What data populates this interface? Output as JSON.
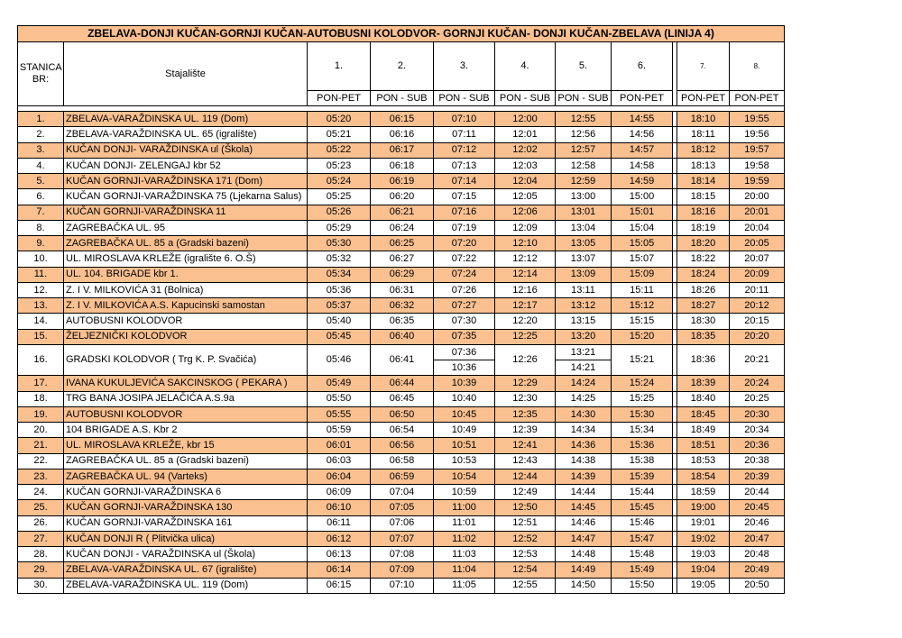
{
  "title": "ZBELAVA-DONJI KUČAN-GORNJI KUČAN-AUTOBUSNI KOLODVOR- GORNJI KUČAN- DONJI KUČAN-ZBELAVA (LINIJA 4)",
  "header": {
    "station_no": "STANICA BR:",
    "stop": "Stajalište",
    "departures": [
      "1.",
      "2.",
      "3.",
      "4.",
      "5.",
      "6.",
      "7.",
      "8."
    ],
    "days": [
      "PON-PET",
      "PON - SUB",
      "PON - SUB",
      "PON - SUB",
      "PON - SUB",
      "PON-PET",
      "PON-PET",
      "PON-PET"
    ]
  },
  "rows": [
    {
      "no": "1.",
      "stop": "ZBELAVA-VARAŽDINSKA UL. 119 (Dom)",
      "times": [
        "05:20",
        "06:15",
        "07:10",
        "12:00",
        "12:55",
        "14:55",
        "18:10",
        "19:55"
      ]
    },
    {
      "no": "2.",
      "stop": "ZBELAVA-VARAŽDINSKA UL. 65 (igralište)",
      "times": [
        "05:21",
        "06:16",
        "07:11",
        "12:01",
        "12:56",
        "14:56",
        "18:11",
        "19:56"
      ]
    },
    {
      "no": "3.",
      "stop": "KUČAN DONJI- VARAŽDINSKA ul (Škola)",
      "times": [
        "05:22",
        "06:17",
        "07:12",
        "12:02",
        "12:57",
        "14:57",
        "18:12",
        "19:57"
      ]
    },
    {
      "no": "4.",
      "stop": "KUČAN DONJI- ZELENGAJ kbr 52",
      "times": [
        "05:23",
        "06:18",
        "07:13",
        "12:03",
        "12:58",
        "14:58",
        "18:13",
        "19:58"
      ]
    },
    {
      "no": "5.",
      "stop": "KUČAN GORNJI-VARAŽDINSKA 171 (Dom)",
      "times": [
        "05:24",
        "06:19",
        "07:14",
        "12:04",
        "12:59",
        "14:59",
        "18:14",
        "19:59"
      ]
    },
    {
      "no": "6.",
      "stop": "KUČAN GORNJI-VARAŽDINSKA 75 (Ljekarna Salus)",
      "times": [
        "05:25",
        "06:20",
        "07:15",
        "12:05",
        "13:00",
        "15:00",
        "18:15",
        "20:00"
      ]
    },
    {
      "no": "7.",
      "stop": "KUČAN GORNJI-VARAŽDINSKA 11",
      "times": [
        "05:26",
        "06:21",
        "07:16",
        "12:06",
        "13:01",
        "15:01",
        "18:16",
        "20:01"
      ]
    },
    {
      "no": "8.",
      "stop": "ZAGREBAČKA UL. 95",
      "times": [
        "05:29",
        "06:24",
        "07:19",
        "12:09",
        "13:04",
        "15:04",
        "18:19",
        "20:04"
      ]
    },
    {
      "no": "9.",
      "stop": "ZAGREBAČKA UL. 85 a (Gradski bazeni)",
      "times": [
        "05:30",
        "06:25",
        "07:20",
        "12:10",
        "13:05",
        "15:05",
        "18:20",
        "20:05"
      ]
    },
    {
      "no": "10.",
      "stop": "UL. MIROSLAVA KRLEŽE (igralište 6. O.Š)",
      "times": [
        "05:32",
        "06:27",
        "07:22",
        "12:12",
        "13:07",
        "15:07",
        "18:22",
        "20:07"
      ]
    },
    {
      "no": "11.",
      "stop": "UL. 104. BRIGADE kbr 1.",
      "times": [
        "05:34",
        "06:29",
        "07:24",
        "12:14",
        "13:09",
        "15:09",
        "18:24",
        "20:09"
      ]
    },
    {
      "no": "12.",
      "stop": "Z. I V. MILKOVIĆA 31 (Bolnica)",
      "times": [
        "05:36",
        "06:31",
        "07:26",
        "12:16",
        "13:11",
        "15:11",
        "18:26",
        "20:11"
      ]
    },
    {
      "no": "13.",
      "stop": "Z. I V. MILKOVIĆA A.S. Kapucinski samostan",
      "times": [
        "05:37",
        "06:32",
        "07:27",
        "12:17",
        "13:12",
        "15:12",
        "18:27",
        "20:12"
      ]
    },
    {
      "no": "14.",
      "stop": "AUTOBUSNI KOLODVOR",
      "times": [
        "05:40",
        "06:35",
        "07:30",
        "12:20",
        "13:15",
        "15:15",
        "18:30",
        "20:15"
      ]
    },
    {
      "no": "15.",
      "stop": "ŽELJEZNIČKI KOLODVOR",
      "times": [
        "05:45",
        "06:40",
        "07:35",
        "12:25",
        "13:20",
        "15:20",
        "18:35",
        "20:20"
      ]
    },
    {
      "no": "16.",
      "stop": "GRADSKI KOLODVOR ( Trg K. P. Svačića)",
      "times": [
        "05:46",
        "06:41",
        [
          "07:36",
          "10:36"
        ],
        "12:26",
        [
          "13:21",
          "14:21"
        ],
        "15:21",
        "18:36",
        "20:21"
      ]
    },
    {
      "no": "17.",
      "stop": "IVANA KUKULJEVIĆA SAKCINSKOG ( PEKARA )",
      "times": [
        "05:49",
        "06:44",
        "10:39",
        "12:29",
        "14:24",
        "15:24",
        "18:39",
        "20:24"
      ]
    },
    {
      "no": "18.",
      "stop": "TRG BANA JOSIPA JELAČIĆA A.S.9a",
      "times": [
        "05:50",
        "06:45",
        "10:40",
        "12:30",
        "14:25",
        "15:25",
        "18:40",
        "20:25"
      ]
    },
    {
      "no": "19.",
      "stop": "AUTOBUSNI KOLODVOR",
      "times": [
        "05:55",
        "06:50",
        "10:45",
        "12:35",
        "14:30",
        "15:30",
        "18:45",
        "20:30"
      ]
    },
    {
      "no": "20.",
      "stop": "104 BRIGADE A.S. Kbr 2",
      "times": [
        "05:59",
        "06:54",
        "10:49",
        "12:39",
        "14:34",
        "15:34",
        "18:49",
        "20:34"
      ]
    },
    {
      "no": "21.",
      "stop": "UL. MIROSLAVA KRLEŽE, kbr 15",
      "times": [
        "06:01",
        "06:56",
        "10:51",
        "12:41",
        "14:36",
        "15:36",
        "18:51",
        "20:36"
      ]
    },
    {
      "no": "22.",
      "stop": "ZAGREBAČKA UL. 85 a (Gradski bazeni)",
      "times": [
        "06:03",
        "06:58",
        "10:53",
        "12:43",
        "14:38",
        "15:38",
        "18:53",
        "20:38"
      ]
    },
    {
      "no": "23.",
      "stop": "ZAGREBAČKA UL. 94 (Varteks)",
      "times": [
        "06:04",
        "06:59",
        "10:54",
        "12:44",
        "14:39",
        "15:39",
        "18:54",
        "20:39"
      ]
    },
    {
      "no": "24.",
      "stop": "KUČAN GORNJI-VARAŽDINSKA 6",
      "times": [
        "06:09",
        "07:04",
        "10:59",
        "12:49",
        "14:44",
        "15:44",
        "18:59",
        "20:44"
      ]
    },
    {
      "no": "25.",
      "stop": "KUČAN GORNJI-VARAŽDINSKA 130",
      "times": [
        "06:10",
        "07:05",
        "11:00",
        "12:50",
        "14:45",
        "15:45",
        "19:00",
        "20:45"
      ]
    },
    {
      "no": "26.",
      "stop": "KUČAN GORNJI-VARAŽDINSKA 161",
      "times": [
        "06:11",
        "07:06",
        "11:01",
        "12:51",
        "14:46",
        "15:46",
        "19:01",
        "20:46"
      ]
    },
    {
      "no": "27.",
      "stop": "KUČAN DONJI R ( Plitvička ulica)",
      "times": [
        "06:12",
        "07:07",
        "11:02",
        "12:52",
        "14:47",
        "15:47",
        "19:02",
        "20:47"
      ]
    },
    {
      "no": "28.",
      "stop": "KUČAN DONJI - VARAŽDINSKA ul (Škola)",
      "times": [
        "06:13",
        "07:08",
        "11:03",
        "12:53",
        "14:48",
        "15:48",
        "19:03",
        "20:48"
      ]
    },
    {
      "no": "29.",
      "stop": "ZBELAVA-VARAŽDINSKA UL. 67 (igralište)",
      "times": [
        "06:14",
        "07:09",
        "11:04",
        "12:54",
        "14:49",
        "15:49",
        "19:04",
        "20:49"
      ]
    },
    {
      "no": "30.",
      "stop": "ZBELAVA-VARAŽDINSKA UL. 119 (Dom)",
      "times": [
        "06:15",
        "07:10",
        "11:05",
        "12:55",
        "14:50",
        "15:50",
        "19:05",
        "20:50"
      ]
    }
  ]
}
